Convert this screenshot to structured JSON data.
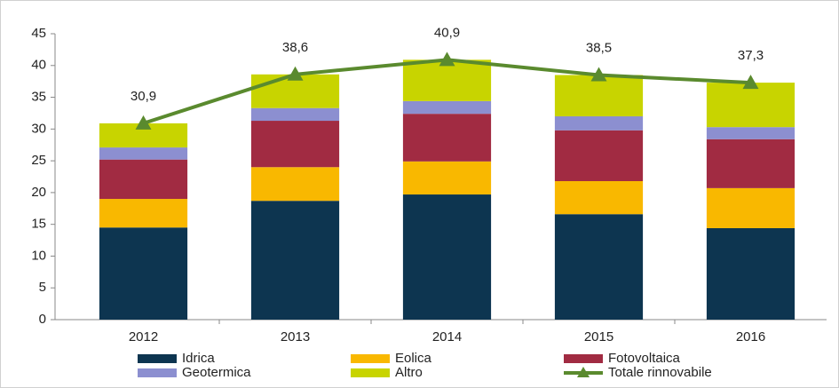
{
  "chart_data": {
    "type": "bar",
    "stacked": true,
    "categories": [
      "2012",
      "2013",
      "2014",
      "2015",
      "2016"
    ],
    "series": [
      {
        "name": "Idrica",
        "color": "#0d3550",
        "values": [
          14.5,
          18.7,
          19.7,
          16.6,
          14.4
        ]
      },
      {
        "name": "Eolica",
        "color": "#f9b800",
        "values": [
          4.5,
          5.3,
          5.2,
          5.2,
          6.3
        ]
      },
      {
        "name": "Fotovoltaica",
        "color": "#a12b42",
        "values": [
          6.2,
          7.3,
          7.5,
          8.0,
          7.7
        ]
      },
      {
        "name": "Geotermica",
        "color": "#8c8fd0",
        "values": [
          1.9,
          2.0,
          2.0,
          2.2,
          1.9
        ]
      },
      {
        "name": "Altro",
        "color": "#c8d400",
        "values": [
          3.8,
          5.3,
          6.5,
          6.5,
          7.0
        ]
      },
      {
        "name": "Totale rinnovabile",
        "type": "line",
        "color": "#5a8a2e",
        "values": [
          30.9,
          38.6,
          40.9,
          38.5,
          37.3
        ],
        "value_labels": [
          "30,9",
          "38,6",
          "40,9",
          "38,5",
          "37,3"
        ]
      }
    ],
    "ylim": [
      0,
      45
    ],
    "yticks": [
      0,
      5,
      10,
      15,
      20,
      25,
      30,
      35,
      40,
      45
    ]
  }
}
